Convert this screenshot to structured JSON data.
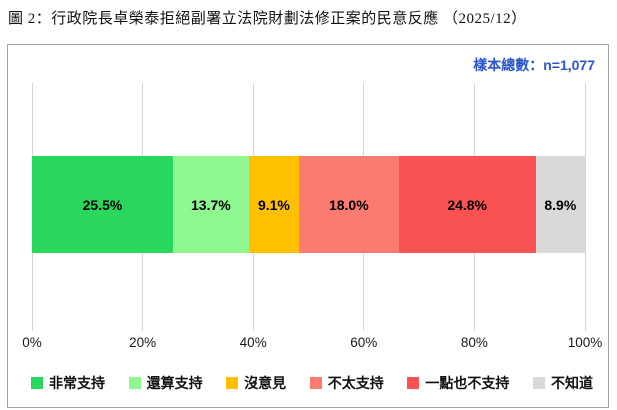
{
  "title": "圖 2：行政院長卓榮泰拒絕副署立法院財劃法修正案的民意反應 （2025/12）",
  "sample_note": "樣本總數：n=1,077",
  "chart_data": {
    "type": "bar",
    "subtype": "stacked-horizontal-100percent",
    "title": "圖 2：行政院長卓榮泰拒絕副署立法院財劃法修正案的民意反應 （2025/12）",
    "annotation": "樣本總數：n=1,077",
    "sample_n": 1077,
    "categories": [
      "非常支持",
      "還算支持",
      "沒意見",
      "不太支持",
      "一點也不支持",
      "不知道"
    ],
    "values": [
      25.5,
      13.7,
      9.1,
      18.0,
      24.8,
      8.9
    ],
    "data_labels": [
      "25.5%",
      "13.7%",
      "9.1%",
      "18.0%",
      "24.8%",
      "8.9%"
    ],
    "segment_colors": [
      "#28d75c",
      "#8ff78f",
      "#ffc000",
      "#fb7b73",
      "#fa5252",
      "#d9d9d9"
    ],
    "x_axis": {
      "range": [
        0,
        100
      ],
      "tick_labels": [
        "0%",
        "20%",
        "40%",
        "60%",
        "80%",
        "100%"
      ],
      "tick_values": [
        0,
        20,
        40,
        60,
        80,
        100
      ],
      "grid": true
    },
    "legend_position": "bottom"
  },
  "colors": {
    "note_blue": "#2b55cc",
    "box_border": "#a3a3a3",
    "gridline": "#d6d6d6",
    "label_text": "#000000",
    "background": "#ffffff"
  }
}
